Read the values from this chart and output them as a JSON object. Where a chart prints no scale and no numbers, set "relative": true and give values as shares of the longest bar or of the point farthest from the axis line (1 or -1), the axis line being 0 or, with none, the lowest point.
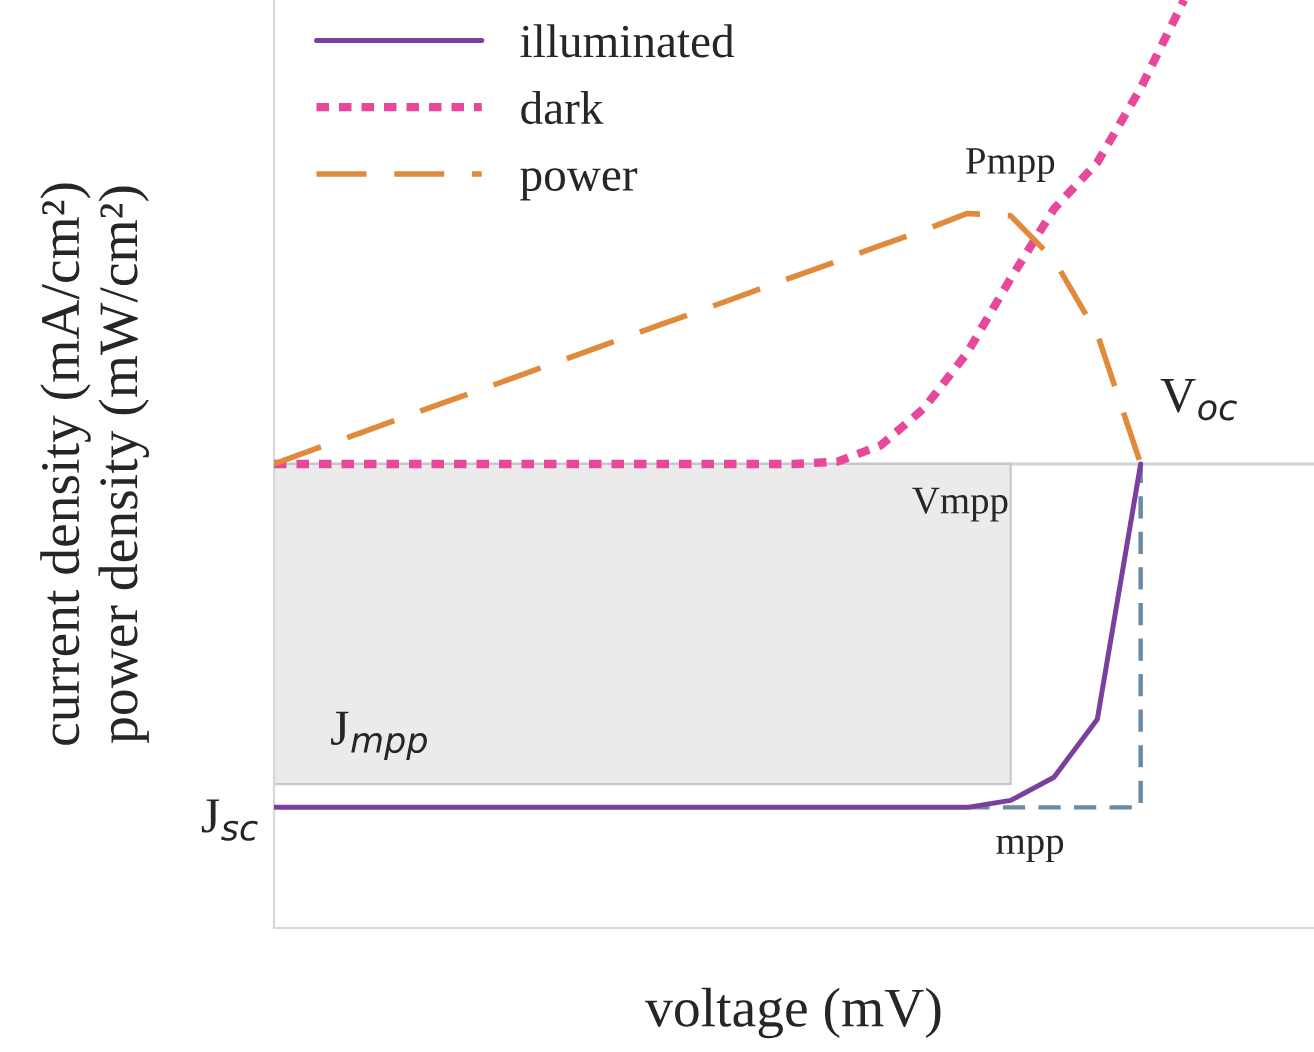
{
  "chart_data": {
    "type": "line",
    "relative": true,
    "categories": [
      null,
      null,
      null,
      null,
      null,
      null,
      null,
      null,
      null,
      null,
      null,
      null,
      null,
      null,
      null,
      null,
      null,
      null,
      null,
      null,
      null,
      null,
      null,
      null,
      null
    ],
    "xlabel": "voltage (mV)",
    "ylabel": "current density (mA/cm²)\npower density (mW/cm²)",
    "legend": "top left",
    "series": [
      {
        "type": "area",
        "color": "#ebebeb",
        "values": [
          -0.69,
          -0.69,
          -0.69,
          -0.69,
          -0.69,
          -0.69,
          -0.69,
          -0.69,
          -0.69,
          -0.69,
          -0.69,
          -0.69,
          -0.69,
          -0.69,
          -0.69,
          -0.69,
          -0.69,
          -0.69,
          null,
          null,
          null,
          null,
          null,
          null,
          null
        ]
      },
      {
        "name": "illuminated",
        "line_style": "solid",
        "color": "#7b3fa0",
        "values": [
          -0.74,
          -0.74,
          -0.74,
          -0.74,
          -0.74,
          -0.74,
          -0.74,
          -0.74,
          -0.74,
          -0.74,
          -0.74,
          -0.74,
          -0.74,
          -0.74,
          -0.74,
          -0.74,
          -0.74,
          -0.725,
          -0.675,
          -0.55,
          0,
          null,
          null,
          null,
          null
        ]
      },
      {
        "name": "dark",
        "line_style": "dotted",
        "color": "#e8489a",
        "values": [
          0,
          0,
          0,
          0,
          0,
          0,
          0,
          0,
          0,
          0,
          0,
          0,
          0,
          0.005,
          0.04,
          0.12,
          0.24,
          0.4,
          0.55,
          0.65,
          0.81,
          1,
          null,
          null,
          null
        ]
      },
      {
        "name": "power",
        "line_style": "dashed",
        "color": "#e08a3c",
        "values": [
          0,
          0.034,
          0.067,
          0.101,
          0.135,
          0.168,
          0.202,
          0.235,
          0.269,
          0.303,
          0.336,
          0.37,
          0.404,
          0.437,
          0.471,
          0.504,
          0.54,
          0.535,
          0.44,
          0.28,
          0,
          null,
          null,
          null,
          null
        ]
      }
    ],
    "annotations": [
      "Pmpp",
      "V$_{oc}$",
      "Vmpp",
      "J$_{mpp}$",
      "J$_{sc}$",
      "mpp"
    ]
  }
}
